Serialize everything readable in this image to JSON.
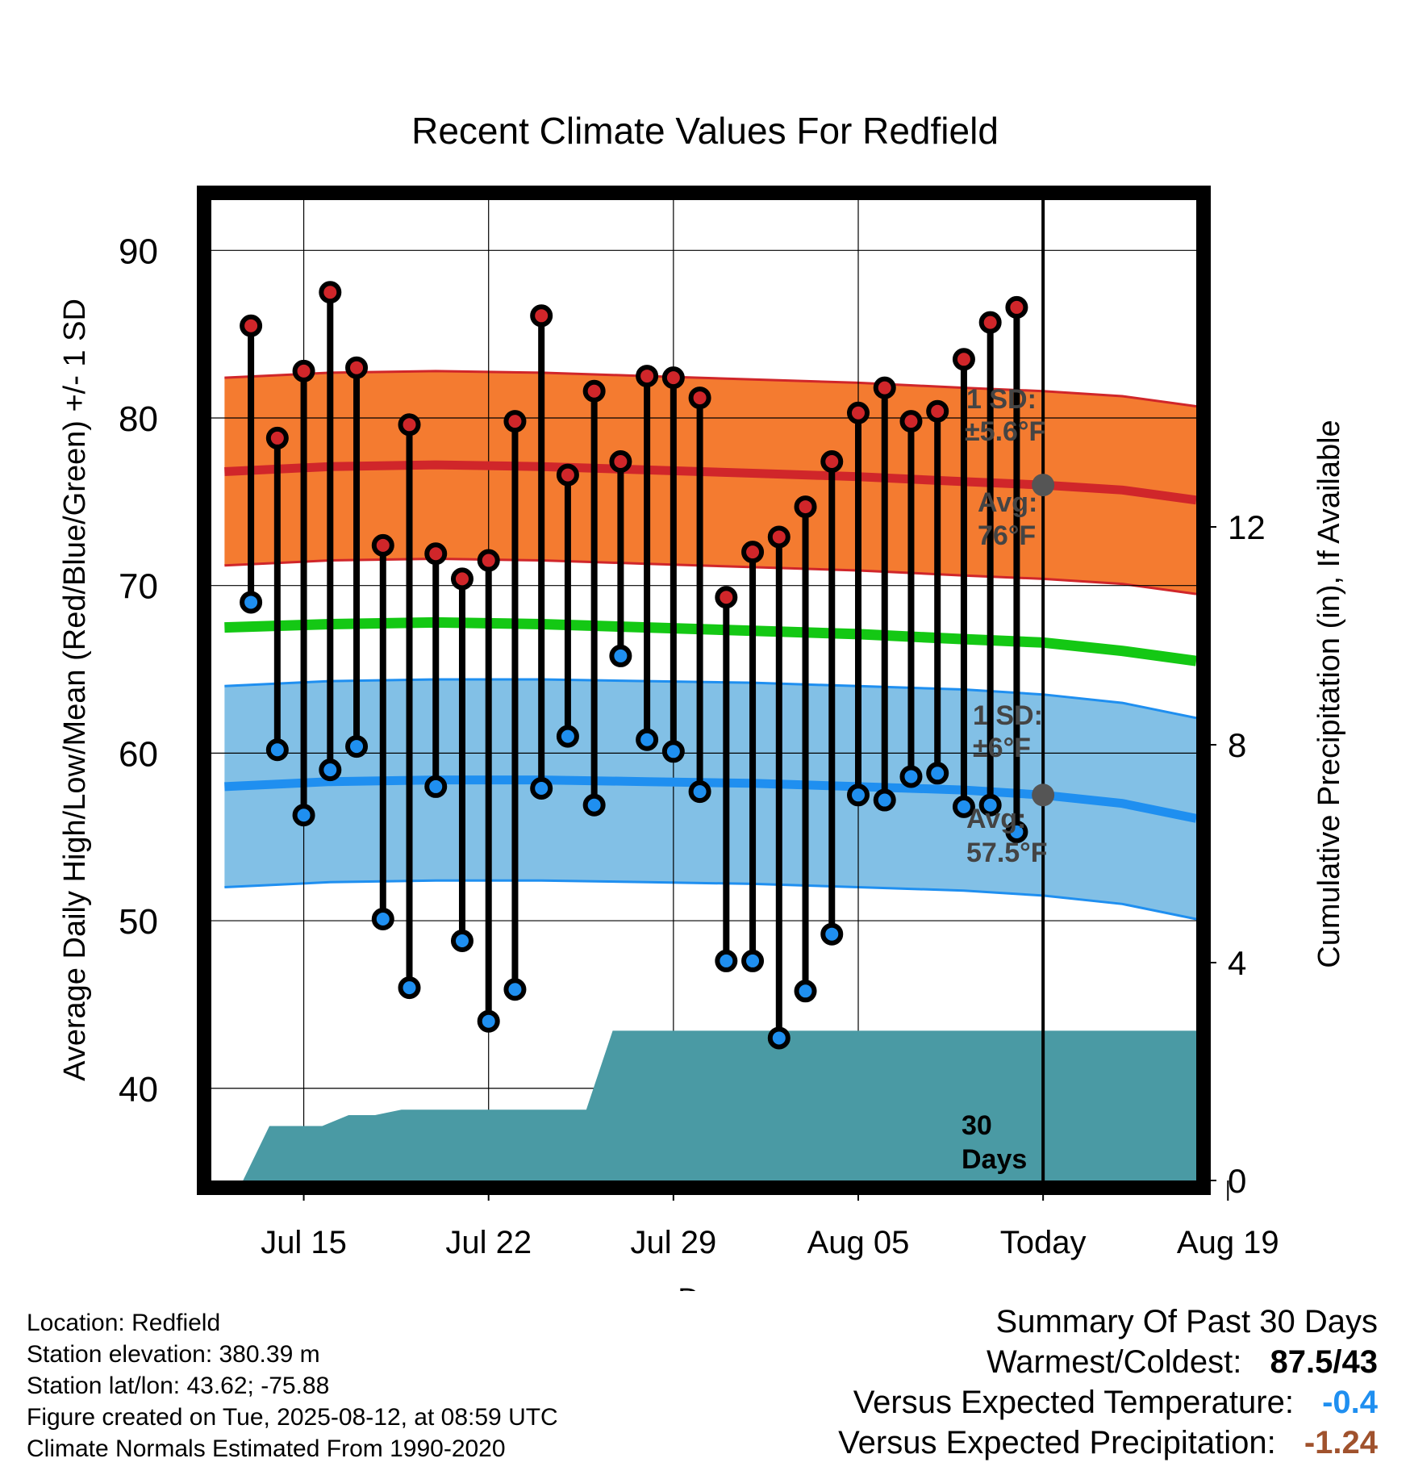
{
  "chart_data": {
    "type": "line",
    "title": "Recent Climate Values For Redfield",
    "xlabel": "Day",
    "ylabel": "Average Daily High/Low/Mean (Red/Blue/Green) +/- 1 SD",
    "y2label": "Cumulative Precipitation (in), If Available",
    "xlim": [
      -0.5,
      36.8
    ],
    "ylim": [
      34.5,
      93
    ],
    "y2lim": [
      0,
      18
    ],
    "x_ticks": [
      {
        "x": 3,
        "label": "Jul 15"
      },
      {
        "x": 10,
        "label": "Jul 22"
      },
      {
        "x": 17,
        "label": "Jul 29"
      },
      {
        "x": 24,
        "label": "Aug 05"
      },
      {
        "x": 31,
        "label": "Today"
      },
      {
        "x": 38,
        "label": "Aug 19"
      }
    ],
    "y_ticks": [
      40,
      50,
      60,
      70,
      80,
      90
    ],
    "y2_ticks": [
      0,
      4,
      8,
      12
    ],
    "grid": true,
    "today_x": 31,
    "today_label": "30 Days",
    "highs": [
      85.5,
      78.8,
      82.8,
      87.5,
      83.0,
      72.4,
      79.6,
      71.9,
      70.4,
      71.5,
      79.8,
      86.1,
      76.6,
      81.6,
      77.4,
      82.5,
      82.4,
      81.2,
      69.3,
      72.0,
      72.9,
      74.7,
      77.4,
      80.3,
      81.8,
      79.8,
      80.4,
      83.5,
      85.7,
      86.6
    ],
    "lows": [
      69.0,
      60.2,
      56.3,
      59.0,
      60.4,
      50.1,
      46.0,
      58.0,
      48.8,
      44.0,
      45.9,
      57.9,
      61.0,
      56.9,
      65.8,
      60.8,
      60.1,
      57.7,
      47.6,
      47.6,
      43.0,
      45.8,
      49.2,
      57.5,
      57.2,
      58.6,
      58.8,
      56.8,
      56.9,
      55.3
    ],
    "normal_high": {
      "x": [
        0,
        4,
        8,
        12,
        16,
        20,
        24,
        28,
        31,
        34,
        36.8
      ],
      "values": [
        76.8,
        77.1,
        77.2,
        77.1,
        76.9,
        76.7,
        76.5,
        76.2,
        76.0,
        75.7,
        75.1
      ]
    },
    "normal_high_sd": 5.6,
    "normal_mean": {
      "x": [
        0,
        4,
        8,
        12,
        16,
        20,
        24,
        28,
        31,
        34,
        36.8
      ],
      "values": [
        67.5,
        67.7,
        67.8,
        67.7,
        67.5,
        67.3,
        67.1,
        66.8,
        66.6,
        66.1,
        65.5
      ]
    },
    "normal_low": {
      "x": [
        0,
        4,
        8,
        12,
        16,
        20,
        24,
        28,
        31,
        34,
        36.8
      ],
      "values": [
        58.0,
        58.3,
        58.4,
        58.4,
        58.3,
        58.2,
        58.0,
        57.8,
        57.5,
        57.0,
        56.1
      ]
    },
    "normal_low_sd": 6.0,
    "precip_cumulative": {
      "x": [
        0,
        0.7,
        1.7,
        2.7,
        3.7,
        4.7,
        5.7,
        6.7,
        7.7,
        8.7,
        9.7,
        10.7,
        11.7,
        12.7,
        13.7,
        14.7,
        36.8
      ],
      "values": [
        0,
        0,
        1.0,
        1.0,
        1.0,
        1.2,
        1.2,
        1.3,
        1.3,
        1.3,
        1.3,
        1.3,
        1.3,
        1.3,
        1.3,
        2.75,
        2.75
      ]
    },
    "colors": {
      "high_band": "#f47b30",
      "high_line": "#d0262a",
      "mean_line": "#14c814",
      "low_band": "#82c0e6",
      "low_line": "#1f8ff0",
      "precip": "#4a9aa4",
      "high_dot": "#d0262a",
      "low_dot": "#1f8ff0",
      "normal_dot": "#555555"
    }
  },
  "annotations": {
    "high_sd_line1": "1 SD:",
    "high_sd_line2": "±5.6°F",
    "high_avg_line1": "Avg:",
    "high_avg_line2": "76°F",
    "low_sd_line1": "1 SD:",
    "low_sd_line2": "±6°F",
    "low_avg_line1": "Avg:",
    "low_avg_line2": "57.5°F",
    "days_line1": "30",
    "days_line2": "Days"
  },
  "meta": {
    "location": "Location: Redfield",
    "elevation": "Station elevation: 380.39 m",
    "latlon": "Station lat/lon: 43.62; -75.88",
    "created": "Figure created on Tue, 2025-08-12, at 08:59 UTC",
    "normals": "Climate Normals Estimated From 1990-2020"
  },
  "summary": {
    "title": "Summary Of Past 30 Days",
    "warmest_coldest_label": "Warmest/Coldest:",
    "warmest_coldest_value": "87.5/43",
    "temp_label": "Versus Expected Temperature:",
    "temp_value": "-0.4",
    "temp_color": "#1f8ff0",
    "precip_label": "Versus Expected Precipitation:",
    "precip_value": "-1.24",
    "precip_color": "#a0522d"
  }
}
